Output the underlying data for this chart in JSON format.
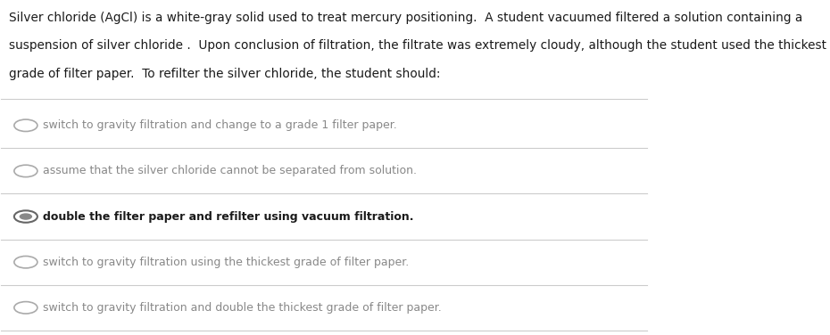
{
  "background_color": "#ffffff",
  "question_text_lines": [
    "Silver chloride (AgCl) is a white-gray solid used to treat mercury positioning.  A student vacuumed filtered a solution containing a",
    "suspension of silver chloride .  Upon conclusion of filtration, the filtrate was extremely cloudy, although the student used the thickest",
    "grade of filter paper.  To refilter the silver chloride, the student should:"
  ],
  "options": [
    {
      "text": "switch to gravity filtration and change to a grade 1 filter paper.",
      "selected": false
    },
    {
      "text": "assume that the silver chloride cannot be separated from solution.",
      "selected": false
    },
    {
      "text": "double the filter paper and refilter using vacuum filtration.",
      "selected": true
    },
    {
      "text": "switch to gravity filtration using the thickest grade of filter paper.",
      "selected": false
    },
    {
      "text": "switch to gravity filtration and double the thickest grade of filter paper.",
      "selected": false
    }
  ],
  "question_font_size": 9.8,
  "option_font_size": 9.0,
  "question_text_color": "#1a1a1a",
  "option_unselected_color": "#888888",
  "option_selected_color": "#1a1a1a",
  "divider_color": "#cccccc",
  "radio_unselected_color": "#aaaaaa",
  "radio_selected_color": "#666666",
  "radio_selected_fill": "#888888"
}
